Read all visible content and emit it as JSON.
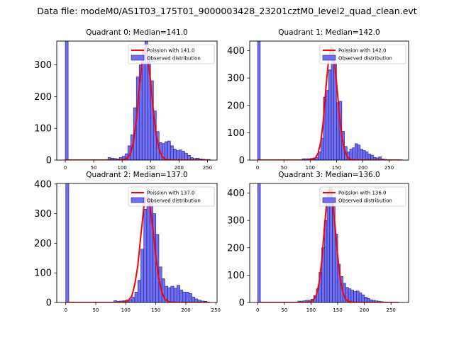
{
  "figure_title": "Data file: modeM0/AS1T03_175T01_9000003428_23201cztM0_level2_quad_clean.evt",
  "legend_labels": {
    "fit": "Poission with {median}",
    "observed": "Observed distribution"
  },
  "colors": {
    "bars": "#6f6ff0",
    "bar_edge": "#1a1a8c",
    "fit": "#ff0000"
  },
  "chart_data": [
    {
      "type": "bar",
      "title": "Quadrant 0: Median=141.0",
      "median": "141.0",
      "xlim": [
        -15,
        267
      ],
      "ylim": [
        0,
        375
      ],
      "xticks": [
        0,
        50,
        100,
        150,
        200,
        250
      ],
      "yticks": [
        0,
        100,
        200,
        300
      ],
      "bin_width": 5.1,
      "bins": [
        [
          0,
          375
        ],
        [
          75,
          8
        ],
        [
          80,
          6
        ],
        [
          85,
          5
        ],
        [
          90,
          4
        ],
        [
          95,
          8
        ],
        [
          100,
          12
        ],
        [
          105,
          20
        ],
        [
          110,
          45
        ],
        [
          115,
          80
        ],
        [
          120,
          165
        ],
        [
          125,
          262
        ],
        [
          130,
          300
        ],
        [
          135,
          345
        ],
        [
          140,
          375
        ],
        [
          145,
          325
        ],
        [
          150,
          250
        ],
        [
          155,
          155
        ],
        [
          160,
          90
        ],
        [
          165,
          55
        ],
        [
          170,
          52
        ],
        [
          175,
          58
        ],
        [
          180,
          60
        ],
        [
          185,
          45
        ],
        [
          190,
          35
        ],
        [
          195,
          30
        ],
        [
          200,
          32
        ],
        [
          205,
          28
        ],
        [
          210,
          22
        ],
        [
          215,
          15
        ],
        [
          220,
          8
        ],
        [
          225,
          5
        ],
        [
          230,
          6
        ],
        [
          235,
          4
        ],
        [
          240,
          3
        ],
        [
          245,
          2
        ],
        [
          250,
          2
        ]
      ],
      "fit_x": [
        0,
        95,
        100,
        105,
        110,
        115,
        120,
        125,
        130,
        135,
        140,
        145,
        150,
        155,
        160,
        165,
        170,
        175,
        180,
        190,
        200,
        250
      ],
      "fit_y": [
        0,
        0,
        1,
        3,
        8,
        22,
        58,
        125,
        225,
        310,
        355,
        330,
        250,
        155,
        80,
        35,
        12,
        4,
        1,
        0,
        0,
        0
      ]
    },
    {
      "type": "bar",
      "title": "Quadrant 1: Median=142.0",
      "median": "142.0",
      "xlim": [
        -15,
        287
      ],
      "ylim": [
        0,
        435
      ],
      "xticks": [
        0,
        50,
        100,
        150,
        200,
        250
      ],
      "yticks": [
        0,
        100,
        200,
        300,
        400
      ],
      "bin_width": 5.1,
      "bins": [
        [
          0,
          435
        ],
        [
          85,
          5
        ],
        [
          90,
          5
        ],
        [
          95,
          5
        ],
        [
          100,
          6
        ],
        [
          105,
          8
        ],
        [
          110,
          10
        ],
        [
          115,
          30
        ],
        [
          120,
          80
        ],
        [
          125,
          230
        ],
        [
          130,
          255
        ],
        [
          135,
          330
        ],
        [
          140,
          410
        ],
        [
          145,
          350
        ],
        [
          150,
          210
        ],
        [
          155,
          215
        ],
        [
          160,
          105
        ],
        [
          165,
          50
        ],
        [
          170,
          30
        ],
        [
          175,
          40
        ],
        [
          180,
          45
        ],
        [
          185,
          60
        ],
        [
          190,
          55
        ],
        [
          195,
          40
        ],
        [
          200,
          35
        ],
        [
          205,
          30
        ],
        [
          210,
          22
        ],
        [
          215,
          18
        ],
        [
          220,
          10
        ],
        [
          225,
          8
        ],
        [
          230,
          12
        ],
        [
          235,
          4
        ],
        [
          240,
          3
        ],
        [
          245,
          2
        ],
        [
          250,
          2
        ],
        [
          255,
          1
        ]
      ],
      "fit_x": [
        0,
        95,
        100,
        105,
        110,
        115,
        120,
        125,
        130,
        135,
        140,
        145,
        150,
        155,
        160,
        165,
        170,
        175,
        180,
        190,
        200,
        275
      ],
      "fit_y": [
        0,
        0,
        1,
        3,
        8,
        25,
        65,
        145,
        265,
        370,
        415,
        380,
        285,
        175,
        88,
        38,
        13,
        4,
        1,
        0,
        0,
        0
      ]
    },
    {
      "type": "bar",
      "title": "Quadrant 2: Median=137.0",
      "median": "137.0",
      "xlim": [
        -15,
        252
      ],
      "ylim": [
        0,
        402
      ],
      "xticks": [
        0,
        50,
        100,
        150,
        200,
        250
      ],
      "yticks": [
        0,
        100,
        200,
        300,
        400
      ],
      "bin_width": 5.1,
      "bins": [
        [
          0,
          402
        ],
        [
          80,
          6
        ],
        [
          85,
          4
        ],
        [
          90,
          5
        ],
        [
          95,
          6
        ],
        [
          100,
          8
        ],
        [
          105,
          10
        ],
        [
          110,
          18
        ],
        [
          115,
          35
        ],
        [
          120,
          75
        ],
        [
          125,
          180
        ],
        [
          130,
          315
        ],
        [
          135,
          385
        ],
        [
          140,
          340
        ],
        [
          145,
          300
        ],
        [
          150,
          230
        ],
        [
          155,
          120
        ],
        [
          160,
          80
        ],
        [
          165,
          55
        ],
        [
          170,
          50
        ],
        [
          175,
          55
        ],
        [
          180,
          48
        ],
        [
          185,
          58
        ],
        [
          190,
          42
        ],
        [
          195,
          35
        ],
        [
          200,
          35
        ],
        [
          205,
          30
        ],
        [
          210,
          18
        ],
        [
          215,
          12
        ],
        [
          220,
          8
        ],
        [
          225,
          5
        ],
        [
          230,
          4
        ]
      ],
      "fit_x": [
        0,
        90,
        95,
        100,
        105,
        110,
        115,
        120,
        125,
        130,
        135,
        140,
        145,
        150,
        155,
        160,
        165,
        170,
        175,
        185,
        240
      ],
      "fit_y": [
        0,
        0,
        1,
        3,
        8,
        22,
        60,
        125,
        225,
        320,
        360,
        330,
        250,
        155,
        80,
        35,
        12,
        4,
        1,
        0,
        0
      ]
    },
    {
      "type": "bar",
      "title": "Quadrant 3: Median=136.0",
      "median": "136.0",
      "xlim": [
        -15,
        283
      ],
      "ylim": [
        0,
        435
      ],
      "xticks": [
        0,
        50,
        100,
        150,
        200,
        250
      ],
      "yticks": [
        0,
        100,
        200,
        300,
        400
      ],
      "bin_width": 5.1,
      "bins": [
        [
          0,
          435
        ],
        [
          75,
          5
        ],
        [
          80,
          5
        ],
        [
          85,
          6
        ],
        [
          90,
          8
        ],
        [
          95,
          8
        ],
        [
          100,
          12
        ],
        [
          105,
          25
        ],
        [
          110,
          50
        ],
        [
          115,
          110
        ],
        [
          120,
          200
        ],
        [
          125,
          300
        ],
        [
          130,
          390
        ],
        [
          135,
          420
        ],
        [
          140,
          350
        ],
        [
          145,
          250
        ],
        [
          150,
          140
        ],
        [
          155,
          95
        ],
        [
          160,
          70
        ],
        [
          165,
          55
        ],
        [
          170,
          50
        ],
        [
          175,
          45
        ],
        [
          180,
          40
        ],
        [
          185,
          42
        ],
        [
          190,
          35
        ],
        [
          195,
          28
        ],
        [
          200,
          20
        ],
        [
          205,
          15
        ],
        [
          210,
          10
        ],
        [
          215,
          8
        ],
        [
          220,
          6
        ],
        [
          225,
          5
        ],
        [
          230,
          3
        ],
        [
          235,
          2
        ]
      ],
      "fit_x": [
        0,
        90,
        95,
        100,
        105,
        110,
        115,
        120,
        125,
        130,
        135,
        140,
        145,
        150,
        155,
        160,
        165,
        170,
        180,
        190,
        265
      ],
      "fit_y": [
        0,
        0,
        1,
        3,
        10,
        28,
        70,
        150,
        270,
        380,
        420,
        380,
        280,
        170,
        85,
        35,
        12,
        4,
        1,
        0,
        0
      ]
    }
  ]
}
